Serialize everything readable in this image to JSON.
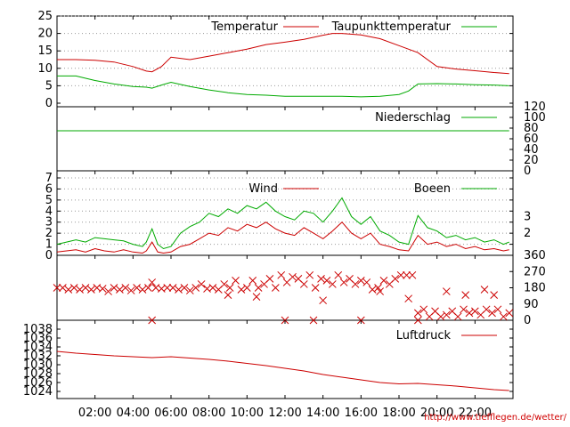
{
  "chart_data": [
    {
      "type": "line",
      "panel": "temperature",
      "ylim": [
        0,
        25
      ],
      "yticks": [
        0,
        5,
        10,
        15,
        20,
        25
      ],
      "grid": true,
      "legend_position": "top-right",
      "series": [
        {
          "name": "Temperatur",
          "color": "#cc0000",
          "x": [
            0,
            1,
            2,
            3,
            4,
            4.7,
            5,
            5.5,
            6,
            7,
            8,
            9,
            10,
            11,
            12,
            13,
            14,
            14.5,
            15,
            16,
            17,
            18,
            19,
            20,
            21,
            22,
            23,
            23.8
          ],
          "y": [
            12.5,
            12.5,
            12.3,
            11.8,
            10.5,
            9.2,
            9.0,
            10.5,
            13.2,
            12.5,
            13.5,
            14.5,
            15.5,
            16.8,
            17.5,
            18.3,
            19.5,
            20.0,
            20.0,
            19.6,
            18.5,
            16.5,
            14.5,
            10.5,
            9.8,
            9.3,
            8.8,
            8.5
          ]
        },
        {
          "name": "Taupunkttemperatur",
          "color": "#00aa00",
          "x": [
            0,
            1,
            2,
            3,
            4,
            4.7,
            5,
            5.5,
            6,
            7,
            8,
            9,
            10,
            11,
            12,
            13,
            14,
            15,
            16,
            17,
            18,
            18.5,
            19,
            20,
            21,
            22,
            23,
            23.8
          ],
          "y": [
            7.8,
            7.8,
            6.5,
            5.5,
            4.8,
            4.6,
            4.3,
            5.2,
            6.0,
            4.8,
            3.8,
            3.0,
            2.5,
            2.3,
            2.0,
            2.0,
            2.0,
            2.0,
            1.8,
            2.0,
            2.5,
            3.5,
            5.5,
            5.6,
            5.5,
            5.3,
            5.2,
            5.0
          ]
        }
      ]
    },
    {
      "type": "line",
      "panel": "precipitation",
      "ylim": [
        0,
        120
      ],
      "yticks": [
        0,
        20,
        40,
        60,
        80,
        100,
        120
      ],
      "series": [
        {
          "name": "Niederschlag",
          "color": "#00aa00",
          "x": [
            0,
            23.8
          ],
          "y": [
            75,
            75
          ]
        }
      ]
    },
    {
      "type": "line",
      "panel": "wind",
      "ylim": [
        0,
        7
      ],
      "yticks": [
        0,
        1,
        2,
        3,
        4,
        5,
        6,
        7
      ],
      "grid": true,
      "right_ticks": [
        {
          "value": 3,
          "label": "3",
          "y": 3.5
        },
        {
          "value": 2,
          "label": "2",
          "y": 2.0
        }
      ],
      "series": [
        {
          "name": "Wind",
          "color": "#cc0000",
          "x": [
            0,
            0.5,
            1,
            1.5,
            2,
            2.5,
            3,
            3.5,
            4,
            4.5,
            4.7,
            5,
            5.3,
            5.6,
            6,
            6.5,
            7,
            7.5,
            8,
            8.5,
            9,
            9.5,
            10,
            10.5,
            11,
            11.5,
            12,
            12.5,
            13,
            13.5,
            14,
            14.5,
            15,
            15.5,
            16,
            16.5,
            17,
            17.5,
            18,
            18.5,
            19,
            19.5,
            20,
            20.5,
            21,
            21.5,
            22,
            22.5,
            23,
            23.5,
            23.8
          ],
          "y": [
            0.3,
            0.4,
            0.5,
            0.3,
            0.6,
            0.4,
            0.3,
            0.5,
            0.3,
            0.2,
            0.4,
            1.2,
            0.3,
            0.2,
            0.3,
            0.8,
            1.0,
            1.5,
            2.0,
            1.8,
            2.5,
            2.2,
            2.8,
            2.5,
            3.0,
            2.4,
            2.0,
            1.8,
            2.5,
            2.0,
            1.5,
            2.2,
            3.0,
            2.0,
            1.5,
            2.0,
            1.0,
            0.8,
            0.5,
            0.4,
            1.8,
            1.0,
            1.2,
            0.8,
            1.0,
            0.6,
            0.8,
            0.5,
            0.6,
            0.4,
            0.5
          ]
        },
        {
          "name": "Boeen",
          "color": "#00aa00",
          "x": [
            0,
            0.5,
            1,
            1.5,
            2,
            2.5,
            3,
            3.5,
            4,
            4.5,
            4.7,
            5,
            5.3,
            5.6,
            6,
            6.5,
            7,
            7.5,
            8,
            8.5,
            9,
            9.5,
            10,
            10.5,
            11,
            11.5,
            12,
            12.5,
            13,
            13.5,
            14,
            14.5,
            15,
            15.5,
            16,
            16.5,
            17,
            17.5,
            18,
            18.5,
            19,
            19.5,
            20,
            20.5,
            21,
            21.5,
            22,
            22.5,
            23,
            23.5,
            23.8
          ],
          "y": [
            1.0,
            1.2,
            1.4,
            1.2,
            1.6,
            1.5,
            1.4,
            1.3,
            1.0,
            0.8,
            1.2,
            2.4,
            1.0,
            0.6,
            0.8,
            2.0,
            2.6,
            3.0,
            3.8,
            3.5,
            4.2,
            3.8,
            4.5,
            4.2,
            4.8,
            4.0,
            3.5,
            3.2,
            4.0,
            3.8,
            3.0,
            4.0,
            5.2,
            3.5,
            2.8,
            3.5,
            2.2,
            1.8,
            1.2,
            1.0,
            3.6,
            2.5,
            2.2,
            1.6,
            1.8,
            1.4,
            1.6,
            1.2,
            1.4,
            1.0,
            1.2
          ]
        }
      ]
    },
    {
      "type": "scatter",
      "panel": "wind_direction",
      "ylim": [
        0,
        360
      ],
      "yticks": [
        0,
        90,
        180,
        270,
        360
      ],
      "series": [
        {
          "name": "",
          "color": "#cc0000",
          "x": [
            0,
            0.3,
            0.6,
            0.9,
            1.2,
            1.5,
            1.8,
            2.1,
            2.4,
            2.7,
            3.0,
            3.3,
            3.6,
            3.9,
            4.2,
            4.5,
            4.8,
            5.0,
            5.2,
            5.5,
            5.8,
            6.1,
            6.4,
            6.7,
            7.0,
            7.3,
            7.6,
            7.9,
            8.2,
            8.5,
            8.8,
            9.1,
            9.4,
            9.7,
            10.0,
            10.3,
            10.6,
            10.9,
            11.2,
            11.5,
            11.8,
            12.1,
            12.4,
            12.7,
            13.0,
            13.3,
            13.6,
            13.9,
            14.2,
            14.5,
            14.8,
            15.1,
            15.4,
            15.7,
            16.0,
            16.3,
            16.6,
            16.9,
            17.2,
            17.5,
            17.8,
            18.1,
            18.4,
            18.7,
            19.0,
            19.3,
            19.6,
            19.9,
            20.2,
            20.5,
            20.8,
            21.1,
            21.4,
            21.7,
            22.0,
            22.3,
            22.6,
            22.9,
            23.2,
            23.5,
            23.8,
            5.0,
            12.0,
            13.5,
            16.0,
            19.0,
            14.0,
            9.0,
            10.5,
            17.0,
            18.5,
            20.5,
            21.5,
            22.5,
            23.0
          ],
          "y": [
            180,
            180,
            170,
            180,
            170,
            180,
            170,
            180,
            175,
            160,
            180,
            170,
            180,
            165,
            180,
            170,
            180,
            210,
            180,
            175,
            180,
            180,
            170,
            180,
            165,
            180,
            200,
            175,
            180,
            170,
            200,
            180,
            220,
            170,
            180,
            220,
            180,
            200,
            230,
            180,
            250,
            210,
            240,
            230,
            200,
            250,
            180,
            230,
            220,
            200,
            250,
            210,
            230,
            200,
            220,
            210,
            170,
            180,
            220,
            200,
            230,
            250,
            250,
            250,
            40,
            60,
            20,
            50,
            20,
            30,
            50,
            20,
            60,
            40,
            50,
            30,
            60,
            40,
            60,
            20,
            40,
            0,
            0,
            0,
            0,
            0,
            110,
            140,
            130,
            160,
            120,
            160,
            140,
            170,
            140
          ]
        }
      ]
    },
    {
      "type": "line",
      "panel": "pressure",
      "ylim": [
        1023,
        1039
      ],
      "yticks": [
        1024,
        1026,
        1028,
        1030,
        1032,
        1034,
        1036,
        1038
      ],
      "xticks": [
        "02:00",
        "04:00",
        "06:00",
        "08:00",
        "10:00",
        "12:00",
        "14:00",
        "16:00",
        "18:00",
        "20:00",
        "22:00"
      ],
      "series": [
        {
          "name": "Luftdruck",
          "color": "#cc0000",
          "x": [
            0,
            1,
            2,
            3,
            4,
            5,
            6,
            7,
            8,
            9,
            10,
            11,
            12,
            13,
            14,
            15,
            16,
            17,
            18,
            19,
            20,
            21,
            22,
            23,
            23.8
          ],
          "y": [
            1033.0,
            1032.6,
            1032.3,
            1032.0,
            1031.8,
            1031.6,
            1031.8,
            1031.5,
            1031.2,
            1030.8,
            1030.3,
            1029.8,
            1029.2,
            1028.6,
            1027.8,
            1027.2,
            1026.6,
            1026.0,
            1025.7,
            1025.8,
            1025.5,
            1025.2,
            1024.8,
            1024.4,
            1024.2
          ]
        }
      ]
    }
  ],
  "credit": "http://www.tiefflegen.de/wetter/",
  "colors": {
    "red": "#cc0000",
    "green": "#00aa00",
    "grid": "#999999"
  }
}
